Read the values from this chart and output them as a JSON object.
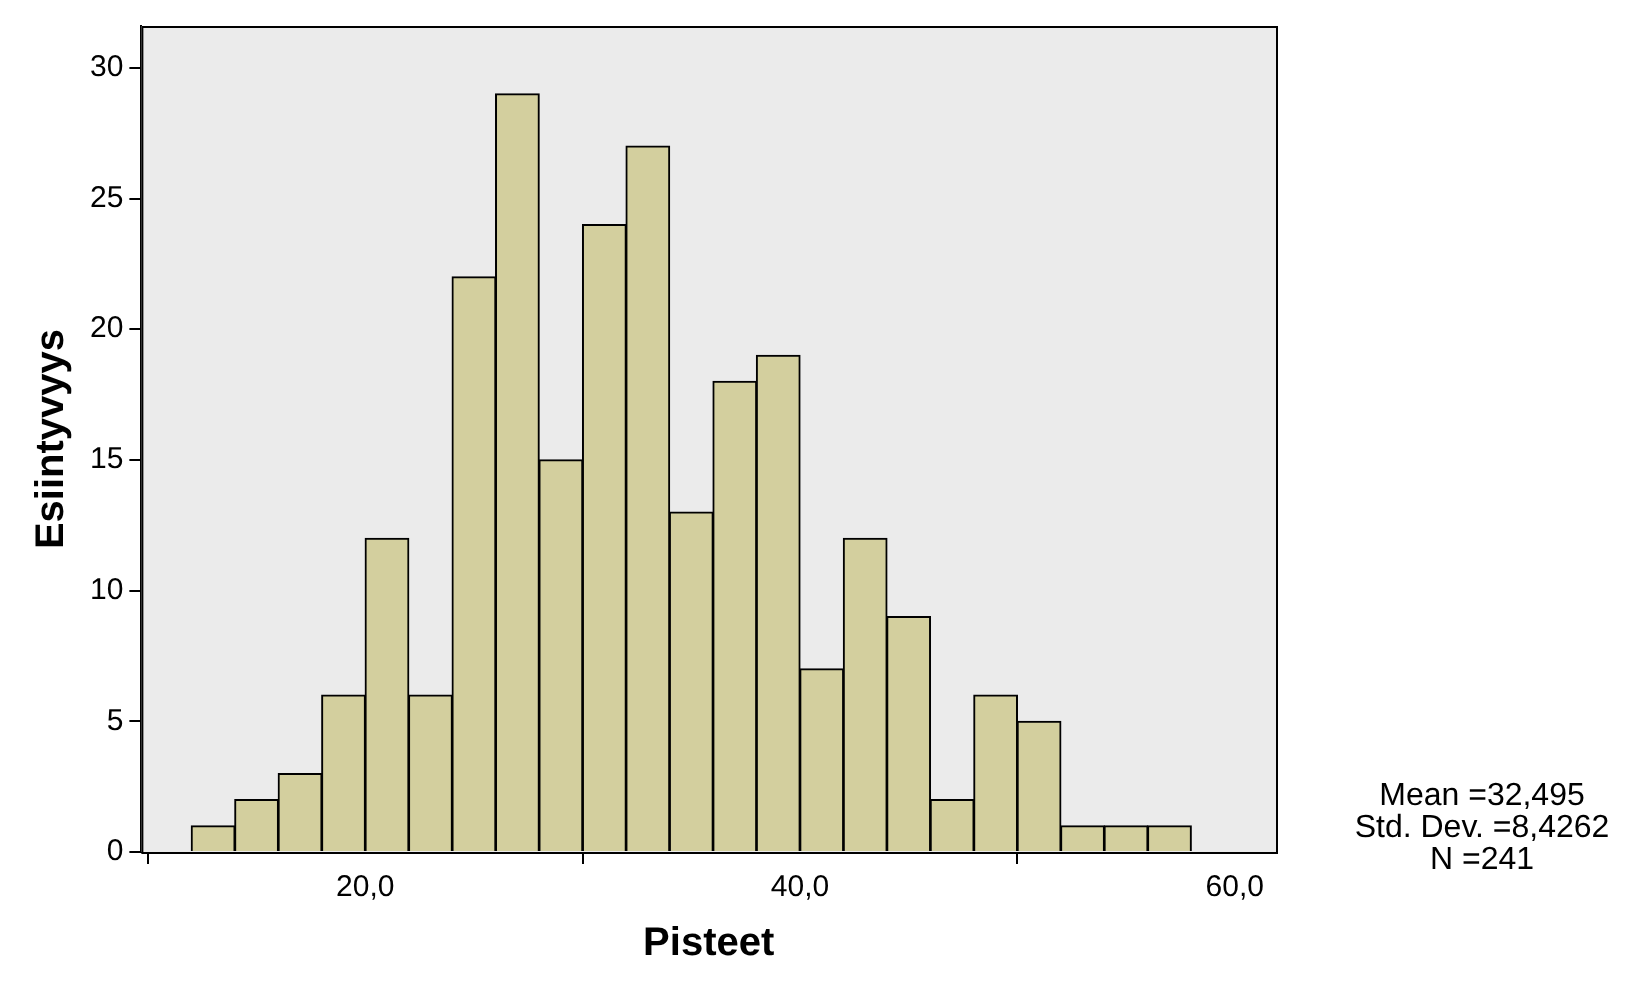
{
  "chart_data": {
    "type": "histogram",
    "xlabel": "Pisteet",
    "ylabel": "Esiintyvyys",
    "bins": [
      12,
      14,
      16,
      18,
      20,
      22,
      24,
      26,
      28,
      30,
      32,
      34,
      36,
      38,
      40,
      42,
      44,
      46,
      48,
      50,
      52,
      54,
      56,
      58
    ],
    "values": [
      1,
      2,
      3,
      6,
      12,
      6,
      22,
      29,
      15,
      24,
      27,
      13,
      18,
      19,
      7,
      12,
      9,
      2,
      6,
      5,
      1,
      1,
      1
    ],
    "color": "#d3cf9e",
    "xlim": [
      9.7,
      61.9
    ],
    "xticks": [
      {
        "value": 20,
        "label": "20,0"
      },
      {
        "value": 40,
        "label": "40,0"
      },
      {
        "value": 60,
        "label": "60,0"
      }
    ],
    "ylim": [
      0,
      31.6
    ],
    "yticks": [
      0,
      5,
      10,
      15,
      20,
      25,
      30
    ],
    "legend": false,
    "annotations": [
      "Mean =32,495",
      "Std. Dev. =8,4262",
      "N =241"
    ]
  }
}
